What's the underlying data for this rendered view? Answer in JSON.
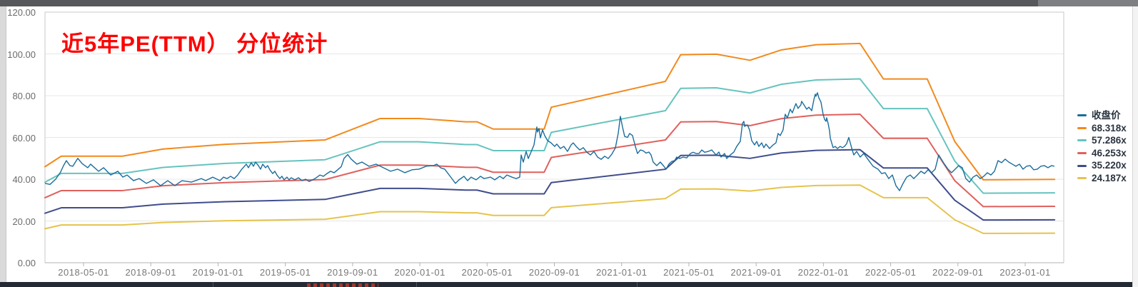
{
  "chart_data": {
    "type": "line",
    "title": "近5年PE(TTM） 分位统计",
    "title_color": "#fe0000",
    "x_axis": {
      "tick_labels": [
        "2018-05-01",
        "2018-09-01",
        "2019-01-01",
        "2019-05-01",
        "2019-09-01",
        "2020-01-01",
        "2020-05-01",
        "2020-09-01",
        "2021-01-01",
        "2021-05-01",
        "2021-09-01",
        "2022-01-01",
        "2022-05-01",
        "2022-09-01",
        "2023-01-01"
      ]
    },
    "y_axis": {
      "tick_labels": [
        "0.00",
        "20.00",
        "40.00",
        "60.00",
        "80.00",
        "100.00",
        "120.00"
      ],
      "min": 0,
      "max": 120
    },
    "x_encoding_note": "series x values are fractions 0-1 across the plot (left edge ≈2018-03, right edge ≈2023-03)",
    "legend": [
      {
        "label": "收盘价",
        "color": "#1b6d9c",
        "role": "close"
      },
      {
        "label": "68.318x",
        "color": "#f28a1d",
        "multiple": 68.318
      },
      {
        "label": "57.286x",
        "color": "#66c3be",
        "multiple": 57.286
      },
      {
        "label": "46.253x",
        "color": "#e0605d",
        "multiple": 46.253
      },
      {
        "label": "35.220x",
        "color": "#404d8c",
        "multiple": 35.22
      },
      {
        "label": "24.187x",
        "color": "#e6c34c",
        "multiple": 24.187
      }
    ],
    "band_note": "each PE band line value = multiple × base_eps_curve value",
    "base_eps_curve": [
      [
        0,
        0.673
      ],
      [
        0.016,
        0.747
      ],
      [
        0.076,
        0.747
      ],
      [
        0.116,
        0.797
      ],
      [
        0.177,
        0.83
      ],
      [
        0.275,
        0.861
      ],
      [
        0.329,
        1.011
      ],
      [
        0.367,
        1.011
      ],
      [
        0.413,
        0.988
      ],
      [
        0.424,
        0.988
      ],
      [
        0.44,
        0.937
      ],
      [
        0.49,
        0.937
      ],
      [
        0.497,
        1.09
      ],
      [
        0.609,
        1.271
      ],
      [
        0.624,
        1.458
      ],
      [
        0.659,
        1.462
      ],
      [
        0.692,
        1.419
      ],
      [
        0.723,
        1.492
      ],
      [
        0.757,
        1.528
      ],
      [
        0.8,
        1.537
      ],
      [
        0.823,
        1.288
      ],
      [
        0.866,
        1.288
      ],
      [
        0.893,
        0.85
      ],
      [
        0.921,
        0.581
      ],
      [
        0.991,
        0.584
      ]
    ],
    "close_series": [
      [
        0,
        38
      ],
      [
        0.0049,
        37.5
      ],
      [
        0.0105,
        40
      ],
      [
        0.0154,
        43.5
      ],
      [
        0.0182,
        46.5
      ],
      [
        0.021,
        48.9
      ],
      [
        0.0245,
        46.5
      ],
      [
        0.0273,
        46.2
      ],
      [
        0.0322,
        50
      ],
      [
        0.0364,
        47.5
      ],
      [
        0.042,
        45.5
      ],
      [
        0.0448,
        47.2
      ],
      [
        0.0526,
        43.8
      ],
      [
        0.0575,
        45.5
      ],
      [
        0.0645,
        42
      ],
      [
        0.0715,
        43.8
      ],
      [
        0.0764,
        41
      ],
      [
        0.0806,
        42
      ],
      [
        0.0869,
        39.3
      ],
      [
        0.0925,
        40.3
      ],
      [
        0.0995,
        38
      ],
      [
        0.1065,
        39.7
      ],
      [
        0.1135,
        36.9
      ],
      [
        0.1205,
        39.3
      ],
      [
        0.1275,
        36.9
      ],
      [
        0.1345,
        39.3
      ],
      [
        0.1437,
        38.6
      ],
      [
        0.1535,
        40.3
      ],
      [
        0.1577,
        39.3
      ],
      [
        0.1647,
        41
      ],
      [
        0.1717,
        39.3
      ],
      [
        0.1752,
        41
      ],
      [
        0.1787,
        40.3
      ],
      [
        0.1822,
        41.4
      ],
      [
        0.1857,
        40.3
      ],
      [
        0.1892,
        42
      ],
      [
        0.1927,
        44.5
      ],
      [
        0.1976,
        47.2
      ],
      [
        0.1997,
        45.5
      ],
      [
        0.2025,
        47.9
      ],
      [
        0.2046,
        46.2
      ],
      [
        0.2067,
        48.2
      ],
      [
        0.2095,
        46.5
      ],
      [
        0.2116,
        44.8
      ],
      [
        0.2137,
        47.2
      ],
      [
        0.2165,
        45.5
      ],
      [
        0.2186,
        46.5
      ],
      [
        0.2207,
        44.5
      ],
      [
        0.2235,
        42.7
      ],
      [
        0.2256,
        43.8
      ],
      [
        0.2277,
        42
      ],
      [
        0.2305,
        40.3
      ],
      [
        0.2326,
        41.4
      ],
      [
        0.2347,
        39.7
      ],
      [
        0.2375,
        41
      ],
      [
        0.2396,
        39.7
      ],
      [
        0.2417,
        40.7
      ],
      [
        0.2453,
        39.7
      ],
      [
        0.2488,
        40.7
      ],
      [
        0.2523,
        39.3
      ],
      [
        0.2558,
        40
      ],
      [
        0.2593,
        38.9
      ],
      [
        0.2628,
        39.7
      ],
      [
        0.2663,
        40.7
      ],
      [
        0.2698,
        42
      ],
      [
        0.2733,
        41.4
      ],
      [
        0.2768,
        42.7
      ],
      [
        0.2803,
        43.8
      ],
      [
        0.2838,
        43.1
      ],
      [
        0.2873,
        44.5
      ],
      [
        0.2908,
        46
      ],
      [
        0.2936,
        50
      ],
      [
        0.2971,
        51.8
      ],
      [
        0.3006,
        49.6
      ],
      [
        0.3062,
        47.2
      ],
      [
        0.3111,
        48.2
      ],
      [
        0.3181,
        46.2
      ],
      [
        0.3251,
        47.2
      ],
      [
        0.3321,
        45.5
      ],
      [
        0.3392,
        43.8
      ],
      [
        0.3462,
        44.8
      ],
      [
        0.3532,
        43.1
      ],
      [
        0.3602,
        44.5
      ],
      [
        0.3672,
        44.8
      ],
      [
        0.3742,
        46.2
      ],
      [
        0.3812,
        46.5
      ],
      [
        0.3847,
        47.2
      ],
      [
        0.3882,
        45.5
      ],
      [
        0.3924,
        44.8
      ],
      [
        0.3994,
        40.3
      ],
      [
        0.4029,
        38
      ],
      [
        0.4064,
        39.7
      ],
      [
        0.4113,
        41.4
      ],
      [
        0.4148,
        39.3
      ],
      [
        0.4183,
        41
      ],
      [
        0.4232,
        39.7
      ],
      [
        0.4275,
        41.4
      ],
      [
        0.431,
        40.3
      ],
      [
        0.4373,
        41
      ],
      [
        0.4415,
        39.7
      ],
      [
        0.4464,
        41.4
      ],
      [
        0.4499,
        40.3
      ],
      [
        0.4534,
        42
      ],
      [
        0.4583,
        41
      ],
      [
        0.4625,
        40.3
      ],
      [
        0.466,
        41
      ],
      [
        0.4674,
        51.6
      ],
      [
        0.4695,
        48.2
      ],
      [
        0.4723,
        53.3
      ],
      [
        0.4744,
        49.9
      ],
      [
        0.4765,
        52.3
      ],
      [
        0.48,
        56.4
      ],
      [
        0.4828,
        65
      ],
      [
        0.4835,
        62.6
      ],
      [
        0.4849,
        64.3
      ],
      [
        0.4863,
        59.8
      ],
      [
        0.4884,
        63.6
      ],
      [
        0.4905,
        60.9
      ],
      [
        0.4933,
        58.5
      ],
      [
        0.4968,
        57.4
      ],
      [
        0.5003,
        55.7
      ],
      [
        0.5024,
        56.8
      ],
      [
        0.5059,
        54.7
      ],
      [
        0.5094,
        55.7
      ],
      [
        0.5129,
        53.3
      ],
      [
        0.5164,
        56.4
      ],
      [
        0.5185,
        57.4
      ],
      [
        0.5214,
        55.7
      ],
      [
        0.5249,
        54
      ],
      [
        0.5284,
        55.1
      ],
      [
        0.5319,
        52.9
      ],
      [
        0.5354,
        51.6
      ],
      [
        0.5389,
        53.3
      ],
      [
        0.5424,
        50.6
      ],
      [
        0.5459,
        49.5
      ],
      [
        0.5494,
        51
      ],
      [
        0.5529,
        49.9
      ],
      [
        0.5564,
        52
      ],
      [
        0.5599,
        55
      ],
      [
        0.5627,
        62
      ],
      [
        0.5648,
        70.1
      ],
      [
        0.5669,
        65
      ],
      [
        0.569,
        60.5
      ],
      [
        0.5718,
        60
      ],
      [
        0.5739,
        61.9
      ],
      [
        0.5767,
        60.9
      ],
      [
        0.5795,
        55.7
      ],
      [
        0.5816,
        52.3
      ],
      [
        0.5844,
        54
      ],
      [
        0.5872,
        53.6
      ],
      [
        0.59,
        52.5
      ],
      [
        0.5928,
        53
      ],
      [
        0.5949,
        51.6
      ],
      [
        0.597,
        48.2
      ],
      [
        0.6005,
        46.5
      ],
      [
        0.604,
        48.2
      ],
      [
        0.6075,
        46.2
      ],
      [
        0.6096,
        44.8
      ],
      [
        0.6124,
        47.2
      ],
      [
        0.6152,
        48.5
      ],
      [
        0.618,
        48.9
      ],
      [
        0.6201,
        50.6
      ],
      [
        0.6229,
        49.9
      ],
      [
        0.6264,
        50.6
      ],
      [
        0.6299,
        50.2
      ],
      [
        0.6335,
        52.3
      ],
      [
        0.6363,
        52.9
      ],
      [
        0.6391,
        52.3
      ],
      [
        0.6419,
        52.3
      ],
      [
        0.6447,
        54
      ],
      [
        0.6475,
        52.9
      ],
      [
        0.651,
        53.3
      ],
      [
        0.6545,
        54
      ],
      [
        0.6587,
        51.6
      ],
      [
        0.6615,
        53
      ],
      [
        0.6636,
        50.6
      ],
      [
        0.6671,
        52.3
      ],
      [
        0.6692,
        49.9
      ],
      [
        0.6727,
        51.6
      ],
      [
        0.6762,
        53
      ],
      [
        0.679,
        55.7
      ],
      [
        0.6825,
        58.1
      ],
      [
        0.6846,
        66.7
      ],
      [
        0.686,
        67.7
      ],
      [
        0.6867,
        65.3
      ],
      [
        0.6895,
        66
      ],
      [
        0.6916,
        63.6
      ],
      [
        0.6937,
        58.5
      ],
      [
        0.6965,
        56.4
      ],
      [
        0.6986,
        58.1
      ],
      [
        0.7007,
        55.7
      ],
      [
        0.7035,
        57.4
      ],
      [
        0.7056,
        55.1
      ],
      [
        0.7077,
        56.8
      ],
      [
        0.7112,
        54.7
      ],
      [
        0.7147,
        56.4
      ],
      [
        0.7175,
        57.4
      ],
      [
        0.7196,
        61.9
      ],
      [
        0.7217,
        60.9
      ],
      [
        0.7245,
        63.6
      ],
      [
        0.7266,
        71.1
      ],
      [
        0.7287,
        69.4
      ],
      [
        0.7315,
        73.5
      ],
      [
        0.7336,
        71.8
      ],
      [
        0.7357,
        74.5
      ],
      [
        0.7371,
        76.2
      ],
      [
        0.7392,
        73.9
      ],
      [
        0.742,
        75.6
      ],
      [
        0.7427,
        77.3
      ],
      [
        0.7455,
        75.2
      ],
      [
        0.7477,
        73.5
      ],
      [
        0.7498,
        74.5
      ],
      [
        0.7526,
        72.8
      ],
      [
        0.7547,
        78
      ],
      [
        0.7561,
        80.7
      ],
      [
        0.7568,
        79.7
      ],
      [
        0.7582,
        81.4
      ],
      [
        0.7596,
        79
      ],
      [
        0.7617,
        76.9
      ],
      [
        0.7638,
        71.1
      ],
      [
        0.7652,
        68.7
      ],
      [
        0.7666,
        67.7
      ],
      [
        0.7673,
        69.4
      ],
      [
        0.7687,
        66.7
      ],
      [
        0.7701,
        63.2
      ],
      [
        0.7708,
        59.8
      ],
      [
        0.7722,
        57.4
      ],
      [
        0.7736,
        55.1
      ],
      [
        0.7757,
        55.7
      ],
      [
        0.7778,
        54.7
      ],
      [
        0.7806,
        55.7
      ],
      [
        0.7827,
        55.1
      ],
      [
        0.7848,
        55.7
      ],
      [
        0.7869,
        57
      ],
      [
        0.789,
        60
      ],
      [
        0.7918,
        55
      ],
      [
        0.7939,
        51.6
      ],
      [
        0.7967,
        53.3
      ],
      [
        0.8002,
        50.6
      ],
      [
        0.8037,
        52.3
      ],
      [
        0.8072,
        49.9
      ],
      [
        0.8128,
        46.2
      ],
      [
        0.8177,
        44.8
      ],
      [
        0.8212,
        42.7
      ],
      [
        0.8247,
        43.1
      ],
      [
        0.8282,
        40.3
      ],
      [
        0.8318,
        42
      ],
      [
        0.8353,
        36.9
      ],
      [
        0.8388,
        34.5
      ],
      [
        0.8423,
        38
      ],
      [
        0.8458,
        41
      ],
      [
        0.8493,
        42
      ],
      [
        0.8528,
        40.3
      ],
      [
        0.8563,
        42
      ],
      [
        0.8598,
        43.8
      ],
      [
        0.8633,
        42.7
      ],
      [
        0.8668,
        44.5
      ],
      [
        0.8703,
        43.1
      ],
      [
        0.8738,
        44.8
      ],
      [
        0.8773,
        51.6
      ],
      [
        0.8829,
        47.2
      ],
      [
        0.8864,
        44.8
      ],
      [
        0.8899,
        43.1
      ],
      [
        0.8934,
        44.8
      ],
      [
        0.8969,
        46.5
      ],
      [
        0.9004,
        45.5
      ],
      [
        0.9039,
        40.3
      ],
      [
        0.9075,
        38.6
      ],
      [
        0.911,
        41
      ],
      [
        0.9145,
        42
      ],
      [
        0.918,
        40.3
      ],
      [
        0.9215,
        41.4
      ],
      [
        0.925,
        43.1
      ],
      [
        0.9285,
        42
      ],
      [
        0.932,
        43.8
      ],
      [
        0.9355,
        48.9
      ],
      [
        0.939,
        47.9
      ],
      [
        0.9425,
        49.6
      ],
      [
        0.946,
        48.2
      ],
      [
        0.9495,
        47.2
      ],
      [
        0.953,
        46.2
      ],
      [
        0.9565,
        47.2
      ],
      [
        0.96,
        44.8
      ],
      [
        0.9635,
        46.2
      ],
      [
        0.967,
        46.5
      ],
      [
        0.9705,
        44.5
      ],
      [
        0.974,
        44.8
      ],
      [
        0.9775,
        46.2
      ],
      [
        0.981,
        46.5
      ],
      [
        0.9845,
        45.5
      ],
      [
        0.988,
        46.5
      ],
      [
        0.9908,
        46.2
      ]
    ]
  }
}
